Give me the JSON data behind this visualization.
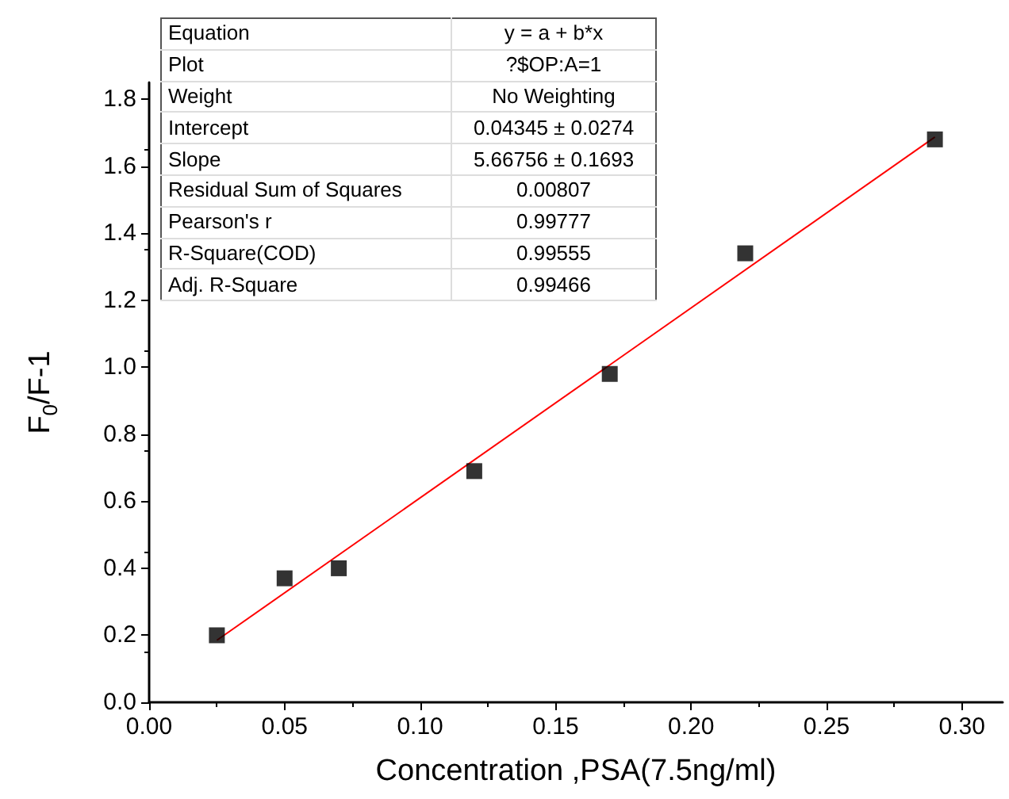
{
  "chart_data": {
    "type": "scatter",
    "xlabel": "Concentration ,PSA(7.5ng/ml)",
    "ylabel": "F$_{0}$/F-1",
    "x": [
      0.025,
      0.05,
      0.07,
      0.12,
      0.17,
      0.22,
      0.29
    ],
    "series": [
      {
        "color": "#000000",
        "marker": "square",
        "values": [
          0.2,
          0.37,
          0.4,
          0.69,
          0.98,
          1.34,
          1.68
        ]
      },
      {
        "type": "line",
        "color": "#ff0000",
        "marker": "none",
        "line_style": "solid",
        "x": [
          0.025,
          0.29
        ],
        "values": [
          0.185,
          1.687
        ]
      }
    ],
    "xlim": [
      0,
      0.315
    ],
    "xticks": [
      {
        "value": 0,
        "label": "0.00"
      },
      {
        "value": 0.05,
        "label": "0.05"
      },
      {
        "value": 0.1,
        "label": "0.10"
      },
      {
        "value": 0.15,
        "label": "0.15"
      },
      {
        "value": 0.2,
        "label": "0.20"
      },
      {
        "value": 0.25,
        "label": "0.25"
      },
      {
        "value": 0.3,
        "label": "0.30"
      }
    ],
    "ylim": [
      0,
      1.85
    ],
    "yticks": [
      {
        "value": 0,
        "label": "0.0"
      },
      {
        "value": 0.2,
        "label": "0.2"
      },
      {
        "value": 0.4,
        "label": "0.4"
      },
      {
        "value": 0.6,
        "label": "0.6"
      },
      {
        "value": 0.8,
        "label": "0.8"
      },
      {
        "value": 1.0,
        "label": "1.0"
      },
      {
        "value": 1.2,
        "label": "1.2"
      },
      {
        "value": 1.4,
        "label": "1.4"
      },
      {
        "value": 1.6,
        "label": "1.6"
      },
      {
        "value": 1.8,
        "label": "1.8"
      }
    ],
    "grid": false,
    "annotations": [
      "Equation",
      "y = a + b*x",
      "Plot",
      "?$OP:A=1",
      "Weight",
      "No Weighting",
      "Intercept",
      "0.04345 ± 0.0274",
      "Slope",
      "5.66756 ± 0.1693",
      "Residual Sum of Squares",
      "0.00807",
      "Pearson's r",
      "0.99777",
      "R-Square(COD)",
      "0.99555",
      "Adj. R-Square",
      "0.99466"
    ]
  }
}
